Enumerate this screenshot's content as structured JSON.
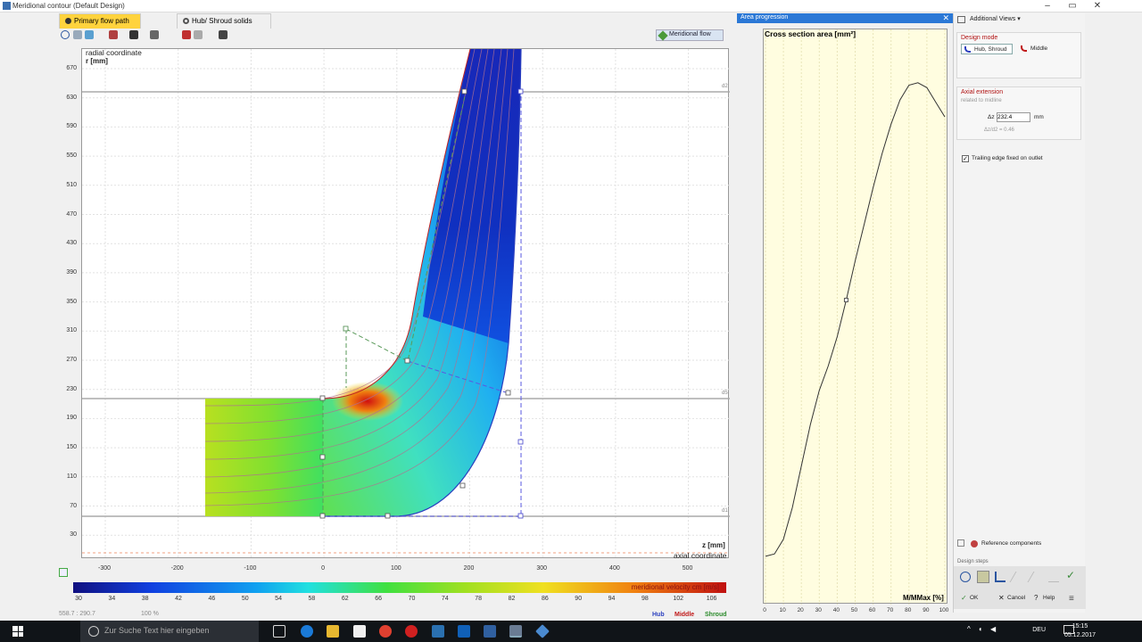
{
  "window": {
    "title": "Meridional contour (Default Design)",
    "controls": [
      "–",
      "▭",
      "✕"
    ]
  },
  "tabs": [
    {
      "label": "Primary flow path",
      "active": true
    },
    {
      "label": "Hub/ Shroud solids",
      "active": false
    }
  ],
  "toolbar": {
    "view_label": "Meridional flow"
  },
  "plot": {
    "y_label_1": "radial coordinate",
    "y_label_2": "r [mm]",
    "x_label_1": "z [mm]",
    "x_label_2": "axial coordinate",
    "y_ticks": [
      "670",
      "630",
      "590",
      "550",
      "510",
      "470",
      "430",
      "390",
      "350",
      "310",
      "270",
      "230",
      "190",
      "150",
      "110",
      "70",
      "30"
    ],
    "x_ticks": [
      "-300",
      "-200",
      "-100",
      "0",
      "100",
      "200",
      "300",
      "400",
      "500"
    ],
    "line_labels": [
      "d2",
      "d5",
      "d1"
    ]
  },
  "colorbar": {
    "label": "meridional velocity cm [m/s]",
    "ticks": [
      "30",
      "34",
      "38",
      "42",
      "46",
      "50",
      "54",
      "58",
      "62",
      "66",
      "70",
      "74",
      "78",
      "82",
      "86",
      "90",
      "94",
      "98",
      "102",
      "106"
    ]
  },
  "status": {
    "coords": "558.7 : 290.7",
    "zoom": "100 %"
  },
  "legend": [
    {
      "label": "Hub",
      "color": "#2a3fbf"
    },
    {
      "label": "Middle",
      "color": "#c01818"
    },
    {
      "label": "Shroud",
      "color": "#2a8a2a"
    }
  ],
  "area_panel": {
    "title": "Area progression",
    "close": "✕",
    "y_label": "Cross section area [mm²]",
    "x_label": "M/MMax [%]",
    "y_ticks": [
      "3.4E5",
      "3.3E5",
      "3.2E5",
      "3.1E5",
      "3E5",
      "2.9E5",
      "2.8E5",
      "2.7E5",
      "2.6E5",
      "2.5E5",
      "2.4E5",
      "2.3E5",
      "2.2E5",
      "2.1E5",
      "2E5",
      "1.9E5",
      "1.8E5",
      "1.7E5",
      "1.6E5",
      "1.5E5",
      "1.4E5",
      "1.3E5",
      "1.2E5"
    ],
    "x_ticks": [
      "0",
      "10",
      "20",
      "30",
      "40",
      "50",
      "60",
      "70",
      "80",
      "90",
      "100"
    ]
  },
  "chart_data": {
    "type": "line",
    "title": "",
    "xlabel": "M/MMax [%]",
    "ylabel": "Cross section area [mm²]",
    "xlim": [
      0,
      100
    ],
    "ylim": [
      120000,
      345000
    ],
    "series": [
      {
        "x": [
          0,
          5,
          10,
          15,
          20,
          25,
          30,
          35,
          40,
          45,
          50,
          55,
          60,
          65,
          70,
          75,
          80,
          85,
          90,
          95,
          100
        ],
        "values": [
          135000,
          136000,
          142000,
          155000,
          172000,
          189000,
          203000,
          213000,
          225000,
          240000,
          256000,
          271000,
          286000,
          300000,
          312000,
          322000,
          328000,
          329000,
          327000,
          321000,
          315000
        ]
      }
    ]
  },
  "right_panel": {
    "header": "Additional Views",
    "design_mode_title": "Design mode",
    "mode_hub_shroud": "Hub, Shroud",
    "mode_middle": "Middle",
    "axial_title": "Axial extension",
    "axial_sub": "related to midline",
    "dz_label": "Δz",
    "dz_value": "232.4",
    "dz_unit": "mm",
    "ratio": "Δz/d2 = 0.46",
    "trailing_edge": "Trailing edge fixed on outlet",
    "ref_components": "Reference components",
    "design_steps": "Design steps",
    "ok": "OK",
    "cancel": "Cancel",
    "help": "Help"
  },
  "taskbar": {
    "search_placeholder": "Zur Suche Text hier eingeben",
    "lang": "DEU",
    "time": "15:15",
    "date": "05.12.2017"
  }
}
